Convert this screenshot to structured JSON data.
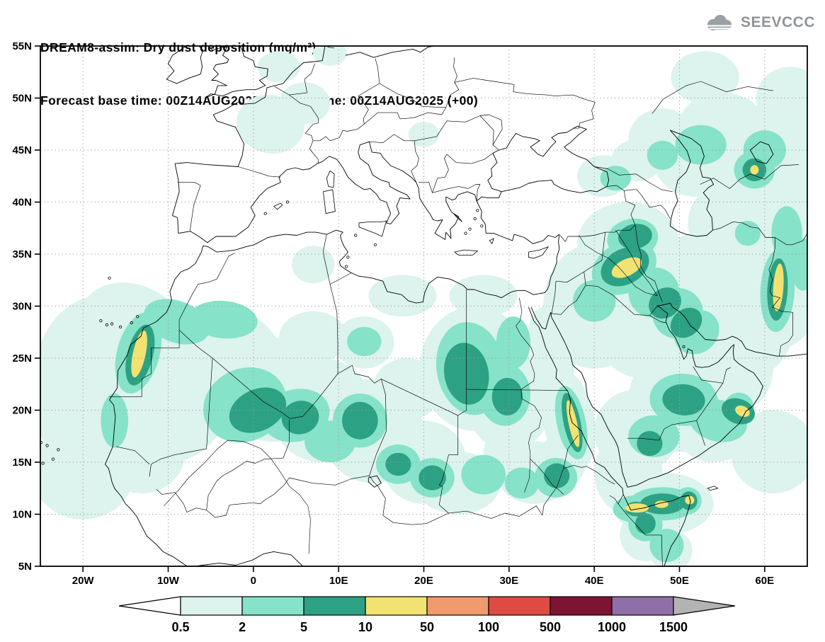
{
  "header": {
    "title": "DREAM8-assim: Dry dust deposition (mg/m²)",
    "subtitle": "Forecast base time: 00Z14AUG2025      valid time: 00Z14AUG2025 (+00)",
    "logo_text": "SEEVCCC"
  },
  "axes": {
    "lat_ticks": [
      {
        "label": "55N",
        "value": 55
      },
      {
        "label": "50N",
        "value": 50
      },
      {
        "label": "45N",
        "value": 45
      },
      {
        "label": "40N",
        "value": 40
      },
      {
        "label": "35N",
        "value": 35
      },
      {
        "label": "30N",
        "value": 30
      },
      {
        "label": "25N",
        "value": 25
      },
      {
        "label": "20N",
        "value": 20
      },
      {
        "label": "15N",
        "value": 15
      },
      {
        "label": "10N",
        "value": 10
      },
      {
        "label": "5N",
        "value": 5
      }
    ],
    "lon_ticks": [
      {
        "label": "20W",
        "value": -20
      },
      {
        "label": "10W",
        "value": -10
      },
      {
        "label": "0",
        "value": 0
      },
      {
        "label": "10E",
        "value": 10
      },
      {
        "label": "20E",
        "value": 20
      },
      {
        "label": "30E",
        "value": 30
      },
      {
        "label": "40E",
        "value": 40
      },
      {
        "label": "50E",
        "value": 50
      },
      {
        "label": "60E",
        "value": 60
      }
    ]
  },
  "chart_data": {
    "type": "heatmap",
    "title": "DREAM8-assim: Dry dust deposition (mg/m²)",
    "units": "mg/m²",
    "forecast_base_time": "00Z14AUG2025",
    "valid_time": "00Z14AUG2025 (+00)",
    "lead_hours": "+00",
    "lon_range": [
      -25,
      65
    ],
    "lat_range": [
      5,
      55
    ],
    "grid": {
      "lat_step": 5,
      "lon_step": 10,
      "style": "dotted"
    },
    "colorbar": {
      "levels": [
        "0.5",
        "2",
        "5",
        "10",
        "50",
        "100",
        "500",
        "1000",
        "1500"
      ],
      "under_color": "#ffffff",
      "segment_colors": [
        "#dcf3ee",
        "#86e2c8",
        "#2da183",
        "#f2e272",
        "#f09a6e",
        "#dd4b43",
        "#7e1433",
        "#8f6fa8"
      ],
      "over_color": "#b3b3b3"
    },
    "deposition_regions": [
      {
        "level": "0.5-2",
        "color_index": 0,
        "ellipses": [
          [
            -18,
            22,
            8,
            9,
            0
          ],
          [
            -10,
            22,
            7.5,
            7,
            0
          ],
          [
            -4,
            24,
            8,
            6,
            20
          ],
          [
            -14,
            28,
            6.5,
            4,
            25
          ],
          [
            -20,
            14,
            6,
            4.5,
            0
          ],
          [
            -13,
            16,
            5,
            4,
            0
          ],
          [
            2,
            22,
            7,
            5,
            10
          ],
          [
            8,
            20,
            6,
            5,
            0
          ],
          [
            14,
            18,
            6,
            5,
            0
          ],
          [
            18,
            22,
            4,
            3,
            0
          ],
          [
            7,
            27,
            4,
            2.5,
            0
          ],
          [
            13,
            26.5,
            3.5,
            2.5,
            0
          ],
          [
            20,
            15,
            5,
            4,
            0
          ],
          [
            26,
            24,
            6.5,
            6,
            0
          ],
          [
            30,
            21,
            5,
            5,
            0
          ],
          [
            24,
            13,
            5,
            3,
            0
          ],
          [
            33,
            14,
            4.5,
            3,
            0
          ],
          [
            17.5,
            31,
            4,
            2,
            0
          ],
          [
            27,
            31,
            4,
            2,
            0
          ],
          [
            36,
            15,
            3,
            2.5,
            0
          ],
          [
            30,
            16,
            3,
            2,
            0
          ],
          [
            40,
            30,
            6,
            6,
            0
          ],
          [
            46,
            30,
            7,
            7,
            0
          ],
          [
            52,
            30,
            6,
            7,
            0
          ],
          [
            58,
            30,
            6,
            7,
            0
          ],
          [
            62,
            32,
            4.5,
            6,
            0
          ],
          [
            44,
            36,
            6,
            4,
            0
          ],
          [
            50,
            21,
            6,
            5,
            0
          ],
          [
            45,
            18,
            5,
            4,
            0
          ],
          [
            54,
            19,
            5,
            4,
            0
          ],
          [
            48,
            11,
            6,
            3,
            0
          ],
          [
            44,
            14,
            4,
            4,
            0
          ],
          [
            57,
            24,
            4,
            4,
            0
          ],
          [
            61,
            16,
            5,
            4,
            0
          ],
          [
            46,
            8,
            3,
            2.5,
            0
          ],
          [
            49,
            6.5,
            2.5,
            2,
            0
          ],
          [
            37,
            19,
            3,
            5,
            -10
          ],
          [
            35,
            26,
            2.5,
            4,
            -15
          ],
          [
            56,
            38,
            5,
            4,
            0
          ],
          [
            62,
            40,
            4,
            5,
            0
          ],
          [
            52,
            44,
            5,
            3.5,
            0
          ],
          [
            58,
            44,
            5,
            3.5,
            0
          ],
          [
            62,
            46,
            4,
            4,
            0
          ],
          [
            48,
            46,
            4,
            3,
            0
          ],
          [
            55,
            47.5,
            5,
            3,
            0
          ],
          [
            53,
            52,
            4,
            2.5,
            0
          ],
          [
            63,
            50,
            4,
            3,
            0
          ],
          [
            2,
            47.5,
            4,
            2.8,
            15
          ],
          [
            6,
            49.5,
            3,
            2,
            0
          ],
          [
            3,
            53,
            2.5,
            1.5,
            0
          ],
          [
            9,
            54.3,
            2,
            1.2,
            0
          ],
          [
            20,
            46.5,
            1.8,
            1.2,
            0
          ],
          [
            7,
            34,
            2.5,
            1.8,
            0
          ],
          [
            41,
            42.5,
            3,
            2,
            0
          ],
          [
            45,
            44,
            3,
            2,
            0
          ],
          [
            64.5,
            34,
            2,
            4,
            0
          ]
        ]
      },
      {
        "level": "2-5",
        "color_index": 1,
        "ellipses": [
          [
            -13.5,
            25.5,
            2.5,
            4,
            15
          ],
          [
            -9,
            28.5,
            4,
            2,
            20
          ],
          [
            -3.5,
            28.7,
            4,
            1.8,
            5
          ],
          [
            -1,
            20.5,
            5,
            3.5,
            -25
          ],
          [
            5,
            19.5,
            4,
            2.5,
            -15
          ],
          [
            12.5,
            19,
            3.2,
            2.6,
            0
          ],
          [
            9,
            17,
            3,
            2,
            0
          ],
          [
            17,
            14.8,
            2.6,
            1.9,
            0
          ],
          [
            21,
            13.5,
            2.6,
            1.9,
            0
          ],
          [
            27,
            13.8,
            2.6,
            1.9,
            0
          ],
          [
            25.5,
            24,
            4,
            4.5,
            -10
          ],
          [
            29.5,
            21.5,
            3,
            3,
            0
          ],
          [
            30.5,
            26.5,
            2,
            2.5,
            0
          ],
          [
            37.3,
            18.8,
            1.7,
            3.6,
            -12
          ],
          [
            43.5,
            33.7,
            4,
            2.4,
            -28
          ],
          [
            47,
            31.3,
            3,
            2.4,
            -35
          ],
          [
            49.8,
            29.3,
            3,
            2.4,
            -40
          ],
          [
            52,
            27.5,
            2.8,
            2,
            -40
          ],
          [
            44.5,
            36.5,
            3,
            1.9,
            -10
          ],
          [
            40,
            30.5,
            2.5,
            2,
            0
          ],
          [
            50.5,
            21,
            4,
            2.5,
            5
          ],
          [
            54.5,
            19,
            3.5,
            2,
            15
          ],
          [
            56.9,
            20.1,
            1.8,
            1.6,
            20
          ],
          [
            47,
            17.5,
            3,
            2,
            0
          ],
          [
            48,
            11,
            4,
            1.6,
            0
          ],
          [
            51,
            11.3,
            1.6,
            1.3,
            0
          ],
          [
            44.8,
            10.5,
            2.6,
            1.3,
            0
          ],
          [
            61.5,
            31.5,
            2,
            4,
            3
          ],
          [
            64.5,
            34,
            1.5,
            2.5,
            0
          ],
          [
            58.8,
            43.1,
            2.4,
            1.8,
            0
          ],
          [
            52.5,
            45.5,
            3,
            1.9,
            0
          ],
          [
            60,
            45,
            2.5,
            1.9,
            0
          ],
          [
            48,
            44.5,
            1.8,
            1.4,
            0
          ],
          [
            42.5,
            42.3,
            1.8,
            1.2,
            0
          ],
          [
            35.5,
            13.5,
            2.5,
            1.9,
            0
          ],
          [
            31.5,
            13,
            2,
            1.5,
            0
          ],
          [
            13,
            26.6,
            2,
            1.4,
            0
          ],
          [
            -16.3,
            19,
            1.6,
            2.6,
            0
          ],
          [
            46,
            9,
            2,
            1.6,
            0
          ],
          [
            48.5,
            7,
            2,
            1.6,
            0
          ],
          [
            62.6,
            37,
            1.8,
            2.6,
            0
          ],
          [
            58,
            37,
            1.5,
            1.2,
            0
          ]
        ]
      },
      {
        "level": "5-10",
        "color_index": 2,
        "ellipses": [
          [
            -13.3,
            25.3,
            1.5,
            3,
            14
          ],
          [
            0.5,
            20,
            3.5,
            2,
            -25
          ],
          [
            5.5,
            19.3,
            2.2,
            1.6,
            -15
          ],
          [
            12.5,
            19,
            2.1,
            1.8,
            0
          ],
          [
            25,
            23.5,
            2.6,
            3,
            -10
          ],
          [
            29.8,
            21.3,
            1.8,
            1.8,
            0
          ],
          [
            43.6,
            33.8,
            3,
            1.7,
            -28
          ],
          [
            48.3,
            30.3,
            2,
            1.4,
            -38
          ],
          [
            50.8,
            28.4,
            2,
            1.3,
            -40
          ],
          [
            44.8,
            36.7,
            2,
            1.2,
            -10
          ],
          [
            50.5,
            21,
            2.5,
            1.5,
            5
          ],
          [
            56.9,
            19.9,
            2,
            1.2,
            20
          ],
          [
            37.4,
            18.8,
            1,
            2.9,
            -12
          ],
          [
            48,
            11,
            2.6,
            1,
            0
          ],
          [
            44.9,
            10.5,
            1.3,
            0.7,
            0
          ],
          [
            61.5,
            31.6,
            1.2,
            3,
            3
          ],
          [
            58.8,
            43.1,
            1.4,
            1.1,
            0
          ],
          [
            21,
            13.5,
            1.6,
            1.2,
            0
          ],
          [
            17,
            14.8,
            1.5,
            1.1,
            0
          ],
          [
            35.6,
            13.7,
            1.5,
            1.2,
            0
          ],
          [
            46,
            9.1,
            1.2,
            1,
            0
          ],
          [
            51.1,
            11.3,
            1,
            0.9,
            0
          ],
          [
            46.5,
            16.8,
            1.5,
            1.2,
            0
          ]
        ]
      },
      {
        "level": "10-50",
        "color_index": 3,
        "ellipses": [
          [
            -13.4,
            25.4,
            0.75,
            2.3,
            12
          ],
          [
            43.8,
            33.7,
            1.9,
            0.8,
            -26
          ],
          [
            61.6,
            31.8,
            0.6,
            2.3,
            4
          ],
          [
            37.5,
            18.7,
            0.5,
            2.3,
            -12
          ],
          [
            57.4,
            19.9,
            0.9,
            0.5,
            25
          ],
          [
            45,
            10.6,
            1.4,
            0.45,
            0
          ],
          [
            47.9,
            10.95,
            0.8,
            0.35,
            0
          ],
          [
            51.2,
            11.35,
            0.55,
            0.4,
            0
          ],
          [
            58.8,
            43.1,
            0.5,
            0.45,
            0
          ]
        ]
      }
    ]
  }
}
